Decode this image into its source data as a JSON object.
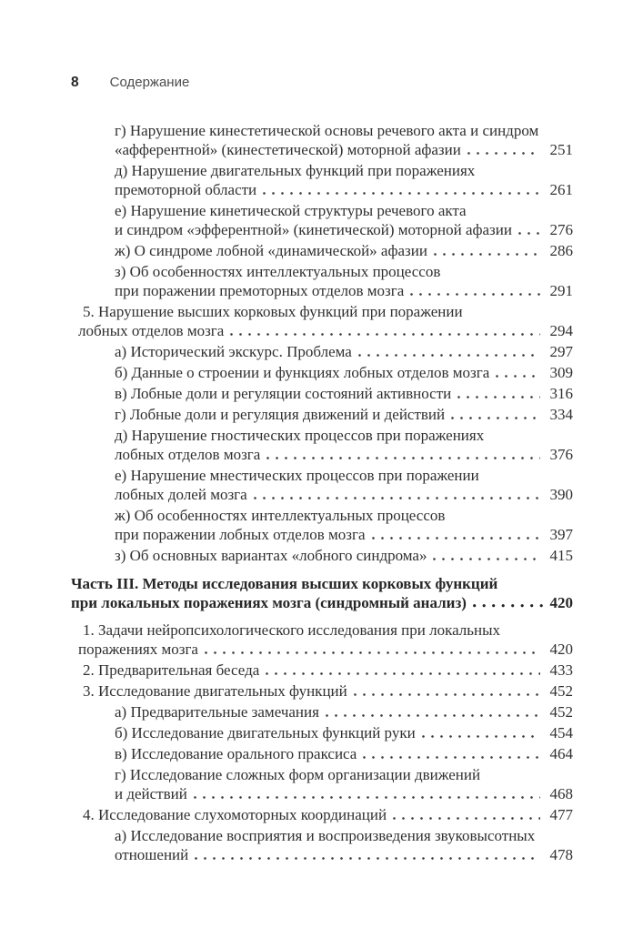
{
  "page": {
    "folio": "8",
    "running_title": "Содержание"
  },
  "toc": {
    "entries": [
      {
        "level": "letter",
        "lines": [
          "г) Нарушение кинестетической основы речевого акта и синдром",
          "«афферентной» (кинестетической) моторной афазии"
        ],
        "page": "251"
      },
      {
        "level": "letter",
        "lines": [
          "д) Нарушение двигательных функций при поражениях",
          "премоторной области"
        ],
        "page": "261"
      },
      {
        "level": "letter",
        "lines": [
          "е) Нарушение кинетической структуры речевого акта",
          "и синдром «эфферентной» (кинетической) моторной афазии"
        ],
        "page": "276"
      },
      {
        "level": "letter",
        "lines": [
          "ж) О синдроме лобной «динамической» афазии"
        ],
        "page": "286"
      },
      {
        "level": "letter",
        "lines": [
          "з) Об особенностях интеллектуальных процессов",
          "при поражении премоторных отделов мозга"
        ],
        "page": "291"
      },
      {
        "level": "num",
        "lines": [
          "5. Нарушение высших корковых функций при поражении",
          "лобных отделов мозга"
        ],
        "page": "294"
      },
      {
        "level": "letter",
        "lines": [
          "а) Исторический экскурс. Проблема"
        ],
        "page": "297"
      },
      {
        "level": "letter",
        "lines": [
          "б) Данные о строении и функциях лобных отделов мозга"
        ],
        "page": "309"
      },
      {
        "level": "letter",
        "lines": [
          "в) Лобные доли и регуляции состояний активности"
        ],
        "page": "316"
      },
      {
        "level": "letter",
        "lines": [
          "г) Лобные доли и регуляция движений и действий"
        ],
        "page": "334"
      },
      {
        "level": "letter",
        "lines": [
          "д) Нарушение гностических процессов при поражениях",
          "лобных отделов мозга"
        ],
        "page": "376"
      },
      {
        "level": "letter",
        "lines": [
          "е) Нарушение мнестических процессов при поражении",
          "лобных долей мозга"
        ],
        "page": "390"
      },
      {
        "level": "letter",
        "lines": [
          "ж) Об особенностях интеллектуальных процессов",
          "при поражении лобных отделов мозга"
        ],
        "page": "397"
      },
      {
        "level": "letter",
        "lines": [
          "з) Об основных вариантах «лобного синдрома»"
        ],
        "page": "415"
      },
      {
        "level": "part",
        "lines": [
          "Часть III. Методы исследования высших корковых функций",
          "при локальных поражениях мозга (синдромный анализ)"
        ],
        "page": "420"
      },
      {
        "level": "num",
        "lines": [
          "1. Задачи нейропсихологического исследования при локальных",
          "поражениях мозга"
        ],
        "page": "420"
      },
      {
        "level": "num",
        "lines": [
          "2. Предварительная беседа"
        ],
        "page": "433"
      },
      {
        "level": "num",
        "lines": [
          "3. Исследование двигательных функций"
        ],
        "page": "452"
      },
      {
        "level": "letter",
        "lines": [
          "а) Предварительные замечания"
        ],
        "page": "452"
      },
      {
        "level": "letter",
        "lines": [
          "б) Исследование двигательных функций руки"
        ],
        "page": "454"
      },
      {
        "level": "letter",
        "lines": [
          "в) Исследование орального праксиса"
        ],
        "page": "464"
      },
      {
        "level": "letter",
        "lines": [
          "г) Исследование сложных форм организации движений",
          "и действий"
        ],
        "page": "468"
      },
      {
        "level": "num",
        "lines": [
          "4. Исследование слухомоторных координаций"
        ],
        "page": "477"
      },
      {
        "level": "letter",
        "lines": [
          "а) Исследование восприятия и воспроизведения звуковысотных",
          "отношений"
        ],
        "page": "478"
      }
    ]
  }
}
